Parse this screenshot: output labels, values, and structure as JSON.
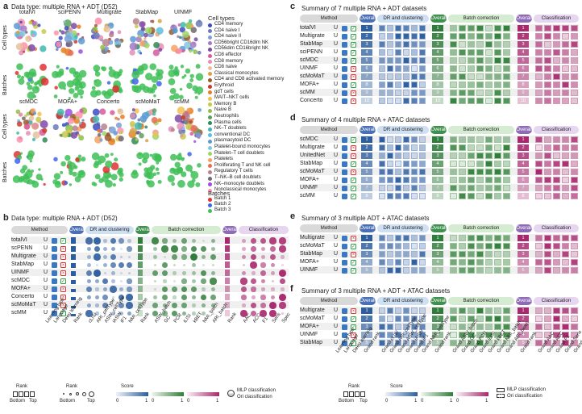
{
  "panels": {
    "a": {
      "label": "a",
      "title": "Data type: multiple RNA + ADT (D52)",
      "methods_row1": [
        "totalVI",
        "sciPENN",
        "Multigrate",
        "StabMap",
        "UINMF"
      ],
      "methods_row2": [
        "scMDC",
        "MOFA+",
        "Concerto",
        "scMoMaT",
        "scMM"
      ],
      "row_labels": [
        "Cell types",
        "Batches",
        "Cell types",
        "Batches"
      ],
      "legend_title": "Cell types",
      "cell_types": [
        "CD4 memory",
        "CD4 naive I",
        "CD4 naive II",
        "CD56bright CD16dim NK",
        "CD56dim CD16bright NK",
        "CD8 effector",
        "CD8 memory",
        "CD8 naive",
        "Classical monocytes",
        "CD4 and CD8 activated memory",
        "Erythroid",
        "gdT cells",
        "MAIT–NKT cells",
        "Memory B",
        "Naive B",
        "Neutrophils",
        "Plasma cells",
        "NK–T doublets",
        "conventional DC",
        "plasmacytoid DC",
        "Platelet-bound monocytes",
        "Platelet–T cell doublets",
        "Platelets",
        "Proliferating T and NK cell",
        "Regulatory T cells",
        "T–NK–B cell doublets",
        "NK–monocyte doublets",
        "Nonclassical monocytes"
      ],
      "cell_colors": [
        "#3b4cc0",
        "#6c7ab8",
        "#7b9fd6",
        "#a678c4",
        "#7d4aa8",
        "#d65ba1",
        "#e38fb7",
        "#e5c19b",
        "#d7a14a",
        "#9a5b2e",
        "#c73b2f",
        "#e67e22",
        "#f2c14e",
        "#c7c94a",
        "#8fbf4a",
        "#5aa05a",
        "#2e8b57",
        "#3fb8af",
        "#5bc0de",
        "#5b9bd5",
        "#7ec8e3",
        "#a0d468",
        "#f4a261",
        "#e76f51",
        "#b5838d",
        "#6d6875",
        "#9d4edd",
        "#ff8fab"
      ],
      "batch_title": "Batches",
      "batches": [
        "Batch 1",
        "Batch 2",
        "Batch 3"
      ],
      "batch_colors": [
        "#e03131",
        "#4263eb",
        "#40c057"
      ]
    },
    "b": {
      "label": "b",
      "title": "Data type: multiple RNA + ADT (D52)",
      "headers": [
        "Method",
        "Overall",
        "DR and clustering",
        "Overall",
        "Batch correction",
        "Overall",
        "Classification"
      ],
      "methods": [
        "totalVI",
        "scPENN",
        "Multigrate",
        "StabMap",
        "UINMF",
        "scMDC",
        "MOFA+",
        "Concerto",
        "scMoMaT",
        "scMM"
      ],
      "cols": [
        "Learning type",
        "Language",
        "Deep learning",
        "Rank",
        "cLISI",
        "ARI_cellType",
        "ASW_cellType",
        "iASW",
        "iF1",
        "NMI_cellType",
        "Rank",
        "ASW_batch",
        "GC",
        "PCR",
        "iLISI",
        "kBET",
        "NMI_batch",
        "ARI_batch",
        "Rank",
        "AAC",
        "ACC",
        "F1",
        "Sens",
        "Spec"
      ],
      "legend": {
        "rank1": "Rank",
        "rank2": "Rank",
        "bottom": "Bottom",
        "top": "Top",
        "score": "Score",
        "zero": "0",
        "one": "1",
        "mlp": "MLP classification",
        "ori": "Ori classification"
      }
    },
    "c": {
      "label": "c",
      "title": "Summary of 7 multiple RNA + ADT datasets",
      "methods": [
        "totalVI",
        "Multigrate",
        "StabMap",
        "sciPENN",
        "scMDC",
        "UINMF",
        "scMoMaT",
        "MOFA+",
        "scMM",
        "Concerto"
      ]
    },
    "d": {
      "label": "d",
      "title": "Summary of 4 multiple RNA + ATAC datasets",
      "methods": [
        "scMDC",
        "Multigrate",
        "UnitedNet",
        "StabMap",
        "scMoMaT",
        "MOFA+",
        "UINMF",
        "scMM"
      ]
    },
    "e": {
      "label": "e",
      "title": "Summary of 3 multiple ADT + ATAC datasets",
      "methods": [
        "Multigrate",
        "scMoMaT",
        "StabMap",
        "MOFA+",
        "UINMF"
      ]
    },
    "f": {
      "label": "f",
      "title": "Summary of 3 multiple RNA + ADT + ATAC datasets",
      "methods": [
        "Multigrate",
        "scMoMaT",
        "MOFA+",
        "UINMF",
        "StabMap"
      ],
      "cols": [
        "Learning type",
        "Language",
        "Deep learning",
        "Grand rank",
        "Grand cLISI",
        "Grand ARI_cellType",
        "Grand ASW_cellType",
        "Grand iASW",
        "Grand iF1",
        "Grand NMI_cellType",
        "Grand rank",
        "Grand ASW_batch",
        "Grand GC",
        "Grand PCR",
        "Grand iLISI",
        "Grand kBET",
        "Grand NMI_batch",
        "Grand ARI_batch",
        "Grand rank",
        "Grand AAC",
        "Grand ACC",
        "Grand F1",
        "Grand Sens",
        "Grand spec"
      ],
      "legend": {
        "rank": "Rank",
        "bottom": "Bottom",
        "top": "Top",
        "score": "Score",
        "zero": "0",
        "one": "1",
        "mlp": "MLP classification",
        "ori": "Ori classification"
      }
    }
  },
  "learning_type": "U",
  "colors": {
    "method": "#d9d9d9",
    "overall_blue": "#4a6fb5",
    "dr": "#cfe0f3",
    "overall_green": "#3f8f4f",
    "bc": "#d6ecd2",
    "overall_purple": "#8e6bb5",
    "cls": "#e6d6f0",
    "blue": "#2c5d9e",
    "green": "#2f7d3a",
    "magenta": "#a8276d"
  }
}
